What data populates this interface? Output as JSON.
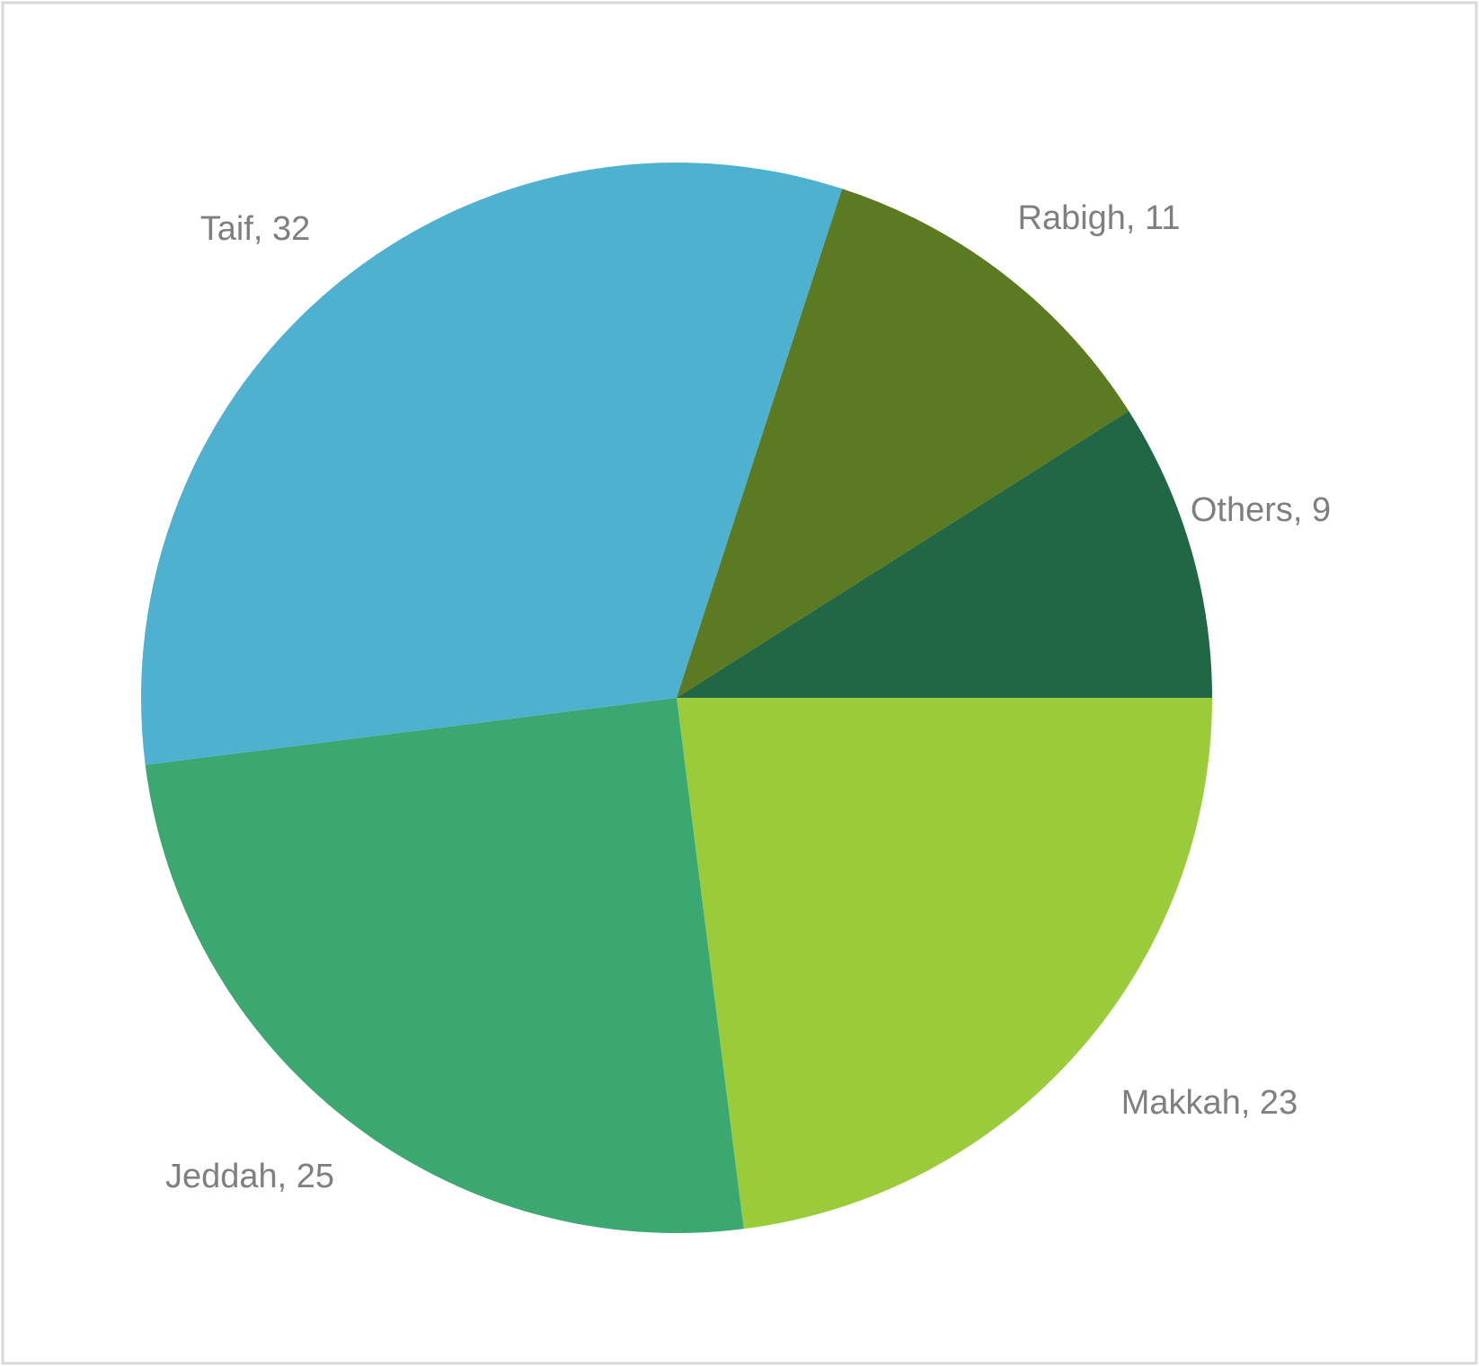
{
  "chart_data": {
    "type": "pie",
    "categories": [
      "Makkah",
      "Jeddah",
      "Taif",
      "Rabigh",
      "Others"
    ],
    "values": [
      23,
      25,
      32,
      11,
      9
    ],
    "value_labels": [
      "Makkah, 23",
      "Jeddah, 25",
      "Taif, 32",
      "Rabigh, 11",
      "Others, 9"
    ],
    "colors": [
      "#9acb3a",
      "#3aa870",
      "#4eb1cf",
      "#5c7a22",
      "#216645"
    ]
  }
}
